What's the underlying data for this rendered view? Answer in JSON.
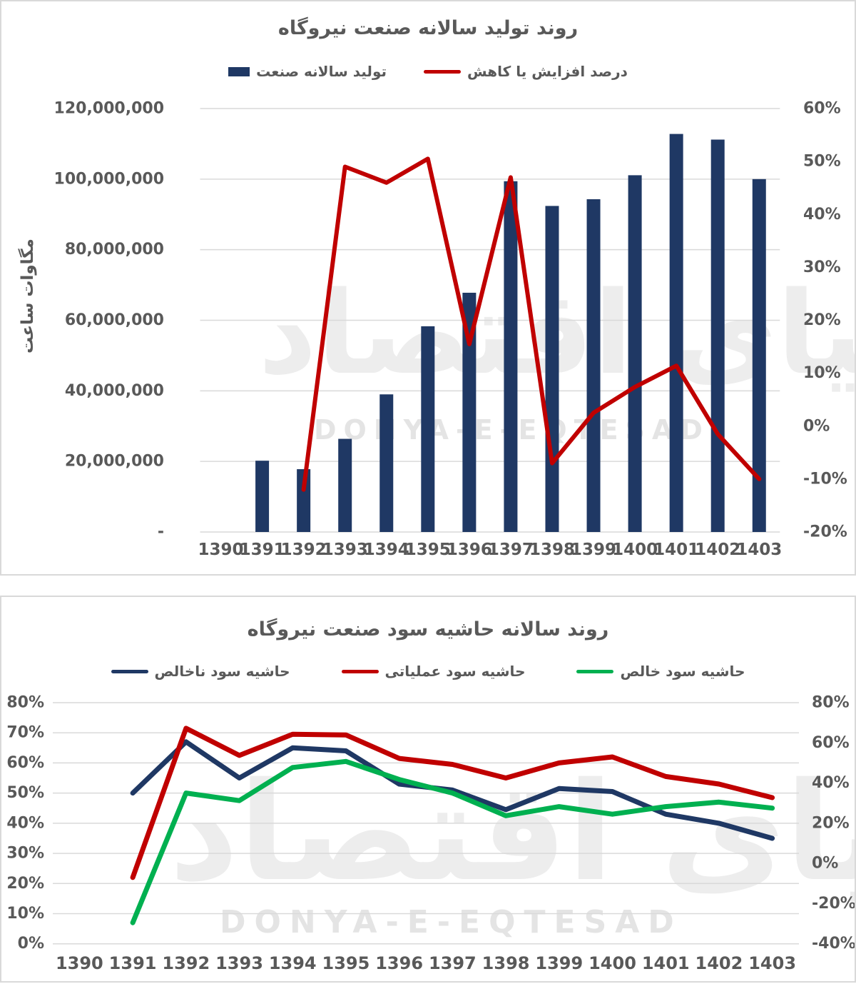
{
  "watermark": {
    "persian": "دنیای اقتصاد",
    "latin": "DONYA-E-EQTESAD"
  },
  "chart_data": [
    {
      "type": "bar",
      "subtype": "bar-line-combo",
      "title": "روند تولید سالانه صنعت نیروگاه",
      "y_axis_title": "مگاوات ساعت",
      "categories": [
        "1390",
        "1391",
        "1392",
        "1393",
        "1394",
        "1395",
        "1396",
        "1397",
        "1398",
        "1399",
        "1400",
        "1401",
        "1402",
        "1403"
      ],
      "series": [
        {
          "name": "تولید سالانه صنعت",
          "type": "bar",
          "axis": "left",
          "color": "#1f3864",
          "values": [
            null,
            20200000,
            17800000,
            26400000,
            39000000,
            58300000,
            67800000,
            99400000,
            92400000,
            94300000,
            101100000,
            112800000,
            111200000,
            100000000
          ]
        },
        {
          "name": "درصد افزایش یا کاهش",
          "type": "line",
          "axis": "right",
          "color": "#c00000",
          "values": [
            null,
            null,
            -12,
            49,
            46,
            50.5,
            15.5,
            47,
            -7,
            2.5,
            7.4,
            11.4,
            -1.5,
            -10
          ]
        }
      ],
      "left_axis": {
        "min": 0,
        "max": 120000000,
        "tick_step": 20000000,
        "tick_labels": [
          "120,000,000",
          "100,000,000",
          "80,000,000",
          "60,000,000",
          "40,000,000",
          "20,000,000",
          "-"
        ]
      },
      "right_axis": {
        "min": -20,
        "max": 60,
        "tick_step": 10,
        "tick_labels": [
          "60%",
          "50%",
          "40%",
          "30%",
          "20%",
          "10%",
          "0%",
          "-10%",
          "-20%"
        ]
      },
      "grid": true,
      "legend_position": "top"
    },
    {
      "type": "line",
      "title": "روند سالانه حاشیه سود صنعت نیروگاه",
      "categories": [
        "1390",
        "1391",
        "1392",
        "1393",
        "1394",
        "1395",
        "1396",
        "1397",
        "1398",
        "1399",
        "1400",
        "1401",
        "1402",
        "1403"
      ],
      "series": [
        {
          "name": "حاشیه سود ناخالص",
          "type": "line",
          "color": "#1f3864",
          "values": [
            null,
            50,
            67,
            55,
            65,
            64,
            53,
            51,
            44.5,
            51.5,
            50.5,
            43,
            40,
            35
          ]
        },
        {
          "name": "حاشیه سود عملیاتی",
          "type": "line",
          "color": "#c00000",
          "values": [
            null,
            22,
            71.5,
            62.5,
            69.5,
            69.3,
            61.5,
            59.5,
            55,
            60,
            62,
            55.5,
            53,
            48.5
          ]
        },
        {
          "name": "حاشیه سود خالص",
          "type": "line",
          "color": "#00b050",
          "values": [
            null,
            7,
            50,
            47.5,
            58.5,
            60.5,
            54.5,
            50,
            42.5,
            45.5,
            43,
            45.5,
            47,
            45
          ]
        }
      ],
      "left_axis": {
        "min": 0,
        "max": 80,
        "tick_step": 10,
        "tick_labels": [
          "80%",
          "70%",
          "60%",
          "50%",
          "40%",
          "30%",
          "20%",
          "10%",
          "0%"
        ]
      },
      "right_axis": {
        "min": -40,
        "max": 80,
        "tick_step": 20,
        "tick_labels": [
          "80%",
          "60%",
          "40%",
          "20%",
          "0%",
          "-20%",
          "-40%"
        ]
      },
      "grid": true,
      "legend_position": "top"
    }
  ]
}
